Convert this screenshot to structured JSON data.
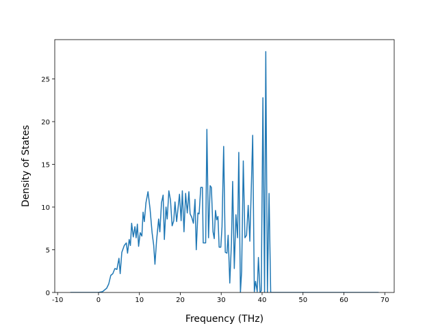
{
  "chart_data": {
    "type": "line",
    "xlabel": "Frequency (THz)",
    "ylabel": "Density of States",
    "x": [
      -6.9,
      0,
      1,
      2,
      2.5,
      3,
      3.5,
      4,
      4.5,
      5,
      5.3,
      5.7,
      6.3,
      6.8,
      7.1,
      7.5,
      7.8,
      8.1,
      8.5,
      8.9,
      9.2,
      9.5,
      9.8,
      10.2,
      10.6,
      10.9,
      11.2,
      11.6,
      12.1,
      12.6,
      13.1,
      13.5,
      13.8,
      14.2,
      14.7,
      15,
      15.4,
      15.8,
      16.1,
      16.5,
      16.8,
      17.2,
      17.6,
      18,
      18.4,
      18.7,
      19.1,
      19.5,
      19.8,
      20.2,
      20.5,
      20.9,
      21.3,
      21.7,
      22.1,
      22.4,
      22.8,
      23.2,
      23.6,
      23.9,
      24.3,
      24.6,
      25,
      25.4,
      25.6,
      26.2,
      26.5,
      26.9,
      27.3,
      27.6,
      28,
      28.3,
      28.6,
      28.9,
      29.2,
      29.5,
      29.9,
      30.2,
      30.6,
      31,
      31.4,
      31.7,
      32.1,
      32.5,
      32.8,
      33.2,
      33.6,
      34,
      34.3,
      34.7,
      35,
      35.4,
      35.8,
      36.2,
      36.6,
      37,
      37.3,
      37.7,
      38.1,
      38.4,
      38.8,
      39.1,
      39.5,
      39.8,
      40.2,
      40.6,
      40.9,
      41.3,
      41.7,
      42.1,
      68.5
    ],
    "series": [
      {
        "color": "#1f77b4",
        "values": [
          0,
          0,
          0.1,
          0.5,
          1,
          2,
          2.2,
          2.8,
          2.7,
          4,
          2.2,
          4.7,
          5.5,
          5.8,
          4.6,
          6.2,
          5.5,
          8.1,
          6.5,
          7.7,
          6.4,
          8,
          5.4,
          7,
          6.6,
          9.4,
          8.3,
          10.5,
          11.8,
          9.8,
          7,
          5.5,
          3.3,
          6.1,
          8.6,
          7.1,
          10.5,
          11.4,
          6.2,
          10,
          8.6,
          11.9,
          10.8,
          7.8,
          8.4,
          10.6,
          8.3,
          10.1,
          11.5,
          8.4,
          11.9,
          7.1,
          11.6,
          9.3,
          11.8,
          9.2,
          8.8,
          8.1,
          10.9,
          5,
          9.3,
          9.2,
          12.3,
          12.3,
          5.8,
          5.8,
          19.1,
          6.4,
          12.5,
          12.3,
          7.1,
          6.3,
          9.6,
          8.5,
          8.9,
          5.3,
          5.3,
          7.7,
          17.1,
          4.7,
          4.6,
          6.7,
          1.1,
          5.8,
          13,
          2.8,
          9.1,
          6.4,
          16.4,
          0,
          2.5,
          15.4,
          6.4,
          6.7,
          10.2,
          6,
          11.2,
          18.4,
          0.1,
          1.3,
          0.1,
          4.1,
          0,
          0.2,
          22.8,
          0,
          28.2,
          0,
          11.6,
          0,
          0
        ]
      }
    ],
    "xlim": [
      -10.7,
      72.3
    ],
    "ylim": [
      0,
      29.6
    ],
    "xticks": [
      -10,
      0,
      10,
      20,
      30,
      40,
      50,
      60,
      70
    ],
    "yticks": [
      0,
      5,
      10,
      15,
      20,
      25
    ]
  }
}
